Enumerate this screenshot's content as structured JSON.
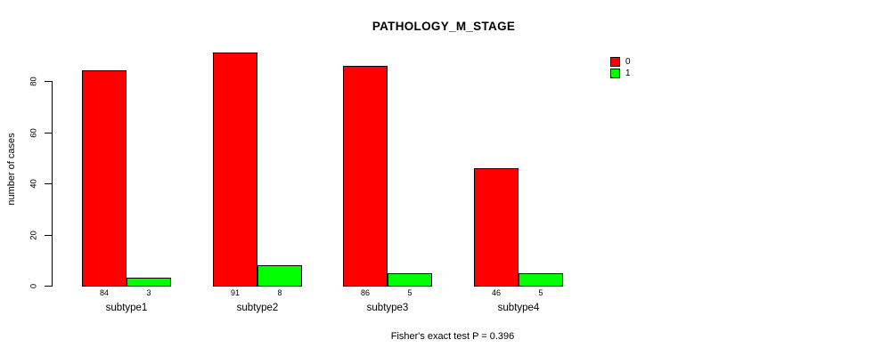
{
  "page": {
    "background_color": "#ffffff"
  },
  "chart_data": {
    "type": "bar",
    "title": "PATHOLOGY_M_STAGE",
    "categories": [
      "subtype1",
      "subtype2",
      "subtype3",
      "subtype4"
    ],
    "series": [
      {
        "name": "0",
        "color": "#ff0000",
        "values": [
          84,
          91,
          86,
          46
        ]
      },
      {
        "name": "1",
        "color": "#00ff00",
        "values": [
          3,
          8,
          5,
          5
        ]
      }
    ],
    "xlabel": "",
    "ylabel": "number of cases",
    "yticks": [
      0,
      20,
      40,
      60,
      80
    ],
    "ylim": [
      0,
      91
    ],
    "grid": false,
    "bar_value_labels_shown": true,
    "legend_position": "top-right",
    "footer": "Fisher's exact test P = 0.396"
  }
}
